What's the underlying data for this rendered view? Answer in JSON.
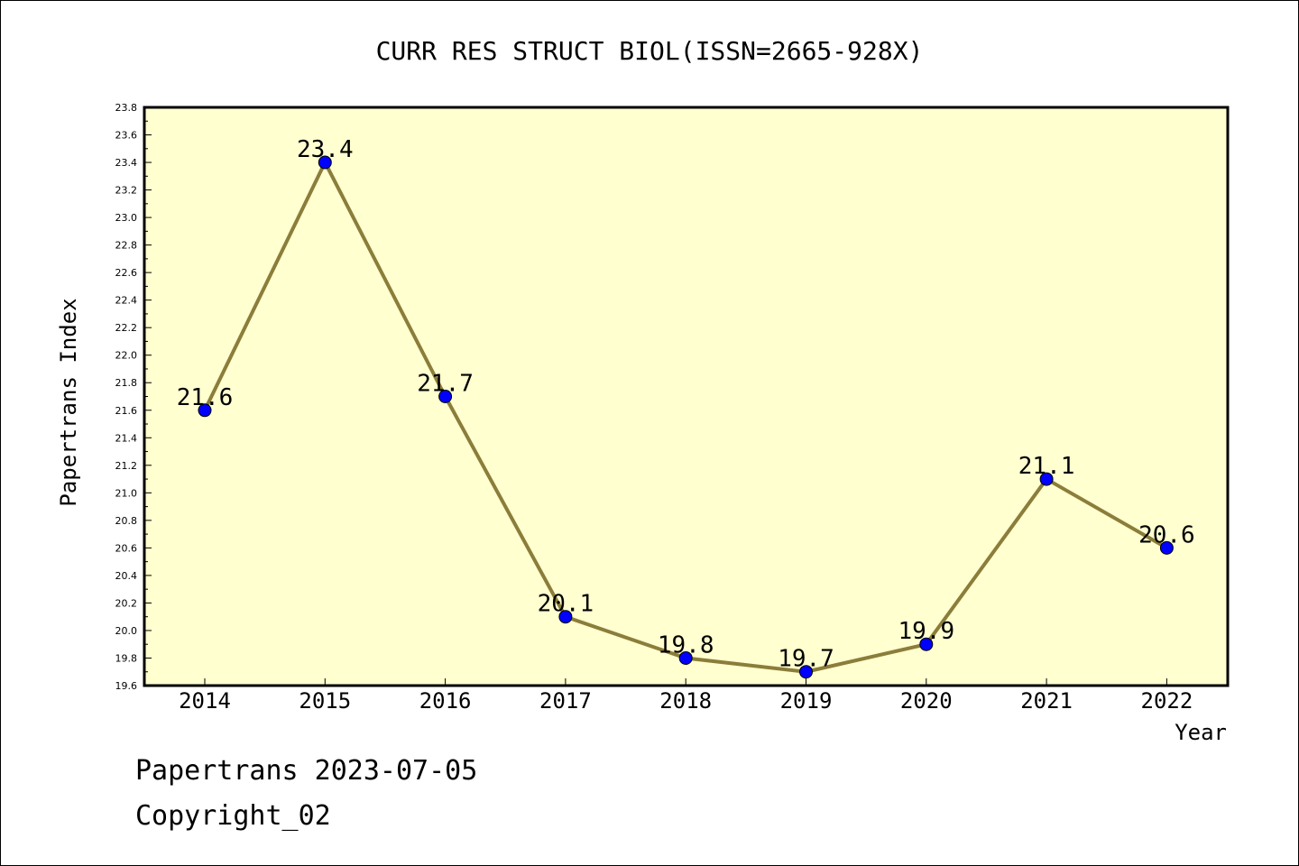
{
  "chart_data": {
    "type": "line",
    "title": "CURR RES STRUCT BIOL(ISSN=2665-928X)",
    "xlabel": "Year",
    "ylabel": "Papertrans Index",
    "categories": [
      "2014",
      "2015",
      "2016",
      "2017",
      "2018",
      "2019",
      "2020",
      "2021",
      "2022"
    ],
    "values": [
      21.6,
      23.4,
      21.7,
      20.1,
      19.8,
      19.7,
      19.9,
      21.1,
      20.6
    ],
    "data_labels": [
      "21.6",
      "23.4",
      "21.7",
      "20.1",
      "19.8",
      "19.7",
      "19.9",
      "21.1",
      "20.6"
    ],
    "ylim": [
      19.6,
      23.8
    ],
    "yticks": [
      "19.6",
      "19.8",
      "20.0",
      "20.2",
      "20.4",
      "20.6",
      "20.8",
      "21.0",
      "21.2",
      "21.4",
      "21.6",
      "21.8",
      "22.0",
      "22.2",
      "22.4",
      "22.6",
      "22.8",
      "23.0",
      "23.2",
      "23.4",
      "23.6",
      "23.8"
    ],
    "grid": false,
    "colors": {
      "plot_background": "#ffffd0",
      "line": "#8b7d3a",
      "marker": "#0000ff"
    }
  },
  "footer": {
    "date_text": "Papertrans 2023-07-05",
    "copyright_text": "Copyright_02"
  }
}
